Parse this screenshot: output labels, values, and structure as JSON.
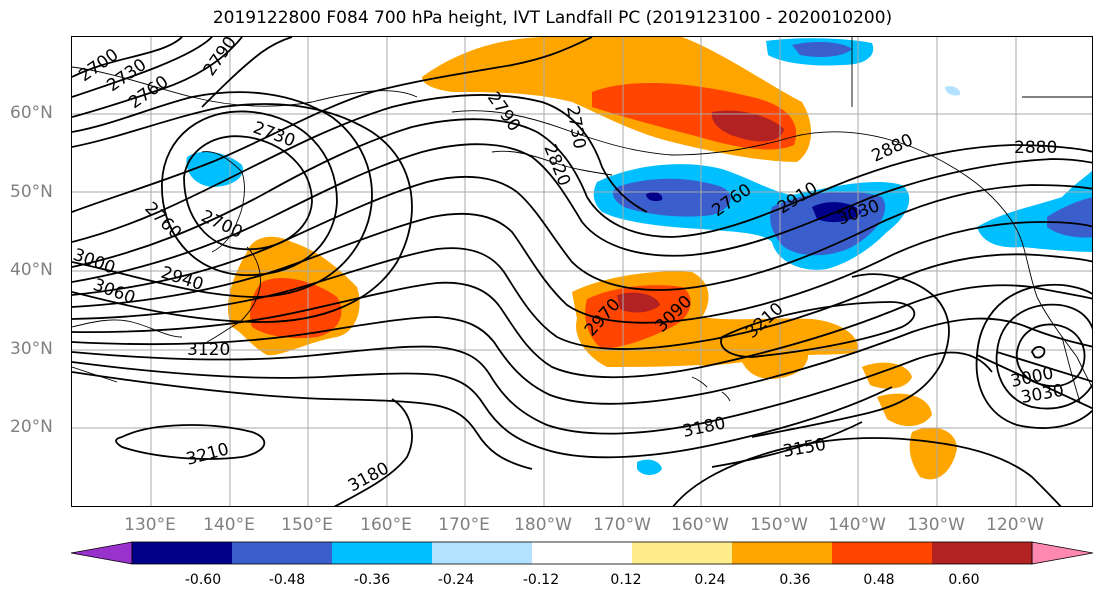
{
  "title": "2019122800 F084 700 hPa height, IVT Landfall PC (2019123100 - 2020010200)",
  "lat_labels": [
    "60°N",
    "50°N",
    "40°N",
    "30°N",
    "20°N"
  ],
  "lon_labels": [
    "130°E",
    "140°E",
    "150°E",
    "160°E",
    "170°E",
    "180°W",
    "170°W",
    "160°W",
    "150°W",
    "140°W",
    "130°W",
    "120°W"
  ],
  "colorbar": {
    "ticks": [
      "-0.60",
      "-0.48",
      "-0.36",
      "-0.24",
      "-0.12",
      "0.12",
      "0.24",
      "0.36",
      "0.48",
      "0.60"
    ],
    "colors": [
      "#9932cc",
      "#00008b",
      "#3a5fcd",
      "#00bfff",
      "#b2e2ff",
      "#ffffff",
      "#ffec8b",
      "#ffa500",
      "#ff4500",
      "#b22222",
      "#ff88b0"
    ]
  },
  "contour_labels": [
    "2700",
    "2730",
    "2760",
    "2790",
    "2730",
    "2760",
    "2700",
    "3000",
    "3060",
    "2940",
    "3120",
    "2790",
    "2730",
    "2820",
    "2760",
    "2910",
    "3030",
    "2880",
    "2880",
    "2970",
    "3090",
    "3210",
    "3180",
    "3150",
    "3210",
    "3180",
    "3000",
    "3030"
  ]
}
